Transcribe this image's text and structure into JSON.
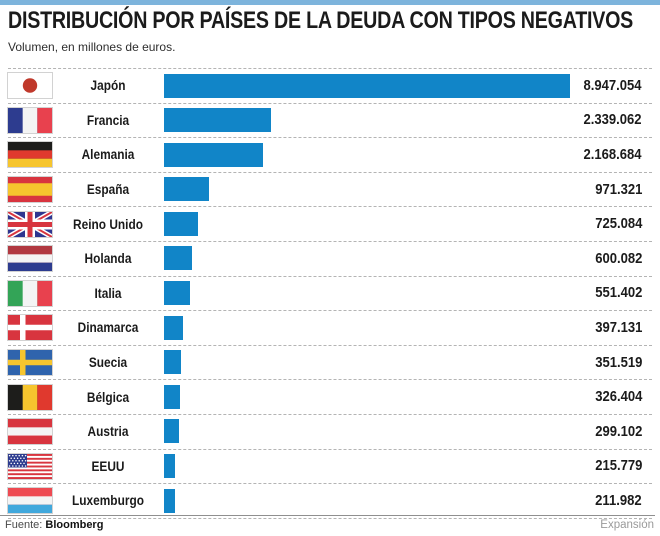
{
  "header": {
    "title": "DISTRIBUCIÓN POR PAÍSES DE LA DEUDA CON TIPOS NEGATIVOS",
    "subtitle": "Volumen, en millones de euros."
  },
  "colors": {
    "bar": "#1185c8",
    "top_border": "#7db4dc"
  },
  "chart_data": {
    "type": "bar",
    "orientation": "horizontal",
    "title": "DISTRIBUCIÓN POR PAÍSES DE LA DEUDA CON TIPOS NEGATIVOS",
    "unit_note": "Volumen, en millones de euros.",
    "categories": [
      "Japón",
      "Francia",
      "Alemania",
      "España",
      "Reino Unido",
      "Holanda",
      "Italia",
      "Dinamarca",
      "Suecia",
      "Bélgica",
      "Austria",
      "EEUU",
      "Luxemburgo"
    ],
    "values": [
      8947054,
      2339062,
      2168684,
      971321,
      725084,
      600082,
      551402,
      397131,
      351519,
      326404,
      299102,
      215779,
      211982
    ],
    "value_labels": [
      "8.947.054",
      "2.339.062",
      "2.168.684",
      "971.321",
      "725.084",
      "600.082",
      "551.402",
      "397.131",
      "351.519",
      "326.404",
      "299.102",
      "215.779",
      "211.982"
    ],
    "flags": [
      "japan",
      "france",
      "germany",
      "spain",
      "uk",
      "netherlands",
      "italy",
      "denmark",
      "sweden",
      "belgium",
      "austria",
      "usa",
      "luxembourg"
    ],
    "legend": "none",
    "grid": "dashed row separators",
    "value_label_position": "right"
  },
  "footer": {
    "source_label": "Fuente:",
    "source_name": "Bloomberg",
    "credit": "Expansión"
  }
}
